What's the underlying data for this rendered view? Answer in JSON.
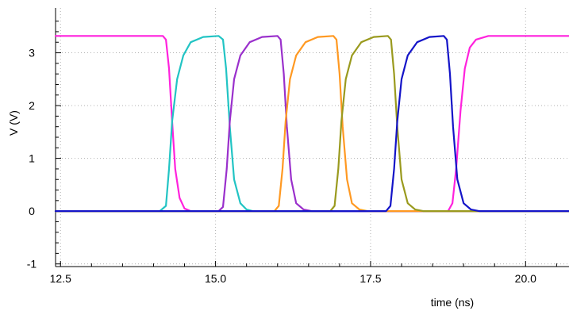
{
  "chart_data": {
    "type": "line",
    "title": "",
    "xlabel": "time (ns)",
    "ylabel": "V (V)",
    "xlim": [
      12.42,
      20.7
    ],
    "ylim": [
      -1.05,
      3.85
    ],
    "grid": true,
    "legend": "none",
    "x_ticks": [
      {
        "value": 12.5,
        "label": "12.5"
      },
      {
        "value": 15.0,
        "label": "15.0"
      },
      {
        "value": 17.5,
        "label": "17.5"
      },
      {
        "value": 20.0,
        "label": "20.0"
      }
    ],
    "y_ticks": [
      {
        "value": -1,
        "label": "-1"
      },
      {
        "value": 0,
        "label": "0"
      },
      {
        "value": 1,
        "label": "1"
      },
      {
        "value": 2,
        "label": "2"
      },
      {
        "value": 3,
        "label": "3"
      }
    ],
    "series": [
      {
        "color": "#ff22dd",
        "points": [
          [
            12.42,
            3.32
          ],
          [
            14.15,
            3.32
          ],
          [
            14.2,
            3.25
          ],
          [
            14.25,
            2.7
          ],
          [
            14.3,
            1.7
          ],
          [
            14.35,
            0.8
          ],
          [
            14.42,
            0.25
          ],
          [
            14.5,
            0.05
          ],
          [
            14.6,
            0.0
          ],
          [
            18.6,
            0.0
          ],
          [
            18.75,
            0.0
          ],
          [
            18.82,
            0.15
          ],
          [
            18.88,
            0.8
          ],
          [
            18.95,
            1.9
          ],
          [
            19.02,
            2.7
          ],
          [
            19.1,
            3.1
          ],
          [
            19.2,
            3.25
          ],
          [
            19.4,
            3.32
          ],
          [
            20.7,
            3.32
          ]
        ]
      },
      {
        "color": "#22c4c4",
        "points": [
          [
            12.42,
            0.0
          ],
          [
            14.1,
            0.0
          ],
          [
            14.2,
            0.1
          ],
          [
            14.25,
            0.8
          ],
          [
            14.3,
            1.7
          ],
          [
            14.38,
            2.5
          ],
          [
            14.48,
            2.95
          ],
          [
            14.6,
            3.2
          ],
          [
            14.8,
            3.3
          ],
          [
            15.05,
            3.32
          ],
          [
            15.12,
            3.25
          ],
          [
            15.17,
            2.7
          ],
          [
            15.23,
            1.6
          ],
          [
            15.3,
            0.6
          ],
          [
            15.4,
            0.15
          ],
          [
            15.5,
            0.03
          ],
          [
            15.6,
            0.0
          ],
          [
            20.7,
            0.0
          ]
        ]
      },
      {
        "color": "#9a30cc",
        "points": [
          [
            12.42,
            0.0
          ],
          [
            15.05,
            0.0
          ],
          [
            15.12,
            0.08
          ],
          [
            15.18,
            0.8
          ],
          [
            15.23,
            1.7
          ],
          [
            15.3,
            2.5
          ],
          [
            15.4,
            2.95
          ],
          [
            15.55,
            3.2
          ],
          [
            15.75,
            3.3
          ],
          [
            16.0,
            3.32
          ],
          [
            16.05,
            3.25
          ],
          [
            16.1,
            2.6
          ],
          [
            16.15,
            1.6
          ],
          [
            16.22,
            0.6
          ],
          [
            16.3,
            0.15
          ],
          [
            16.42,
            0.03
          ],
          [
            16.55,
            0.0
          ],
          [
            20.7,
            0.0
          ]
        ]
      },
      {
        "color": "#ff9922",
        "points": [
          [
            12.42,
            0.0
          ],
          [
            15.95,
            0.0
          ],
          [
            16.02,
            0.1
          ],
          [
            16.08,
            0.8
          ],
          [
            16.13,
            1.7
          ],
          [
            16.2,
            2.5
          ],
          [
            16.3,
            2.95
          ],
          [
            16.45,
            3.2
          ],
          [
            16.65,
            3.3
          ],
          [
            16.9,
            3.32
          ],
          [
            16.95,
            3.25
          ],
          [
            17.0,
            2.6
          ],
          [
            17.05,
            1.6
          ],
          [
            17.12,
            0.6
          ],
          [
            17.2,
            0.15
          ],
          [
            17.32,
            0.03
          ],
          [
            17.45,
            0.0
          ],
          [
            20.7,
            0.0
          ]
        ]
      },
      {
        "color": "#9a9a1e",
        "points": [
          [
            12.42,
            0.0
          ],
          [
            16.85,
            0.0
          ],
          [
            16.92,
            0.1
          ],
          [
            16.98,
            0.8
          ],
          [
            17.03,
            1.7
          ],
          [
            17.1,
            2.5
          ],
          [
            17.2,
            2.95
          ],
          [
            17.35,
            3.2
          ],
          [
            17.55,
            3.3
          ],
          [
            17.78,
            3.32
          ],
          [
            17.83,
            3.25
          ],
          [
            17.88,
            2.6
          ],
          [
            17.93,
            1.6
          ],
          [
            18.0,
            0.6
          ],
          [
            18.1,
            0.15
          ],
          [
            18.22,
            0.03
          ],
          [
            18.35,
            0.0
          ],
          [
            20.7,
            0.0
          ]
        ]
      },
      {
        "color": "#1414c8",
        "points": [
          [
            12.42,
            0.0
          ],
          [
            17.75,
            0.0
          ],
          [
            17.82,
            0.1
          ],
          [
            17.88,
            0.8
          ],
          [
            17.93,
            1.7
          ],
          [
            18.0,
            2.5
          ],
          [
            18.1,
            2.95
          ],
          [
            18.25,
            3.2
          ],
          [
            18.45,
            3.3
          ],
          [
            18.68,
            3.32
          ],
          [
            18.73,
            3.25
          ],
          [
            18.78,
            2.6
          ],
          [
            18.83,
            1.6
          ],
          [
            18.9,
            0.6
          ],
          [
            19.0,
            0.15
          ],
          [
            19.12,
            0.03
          ],
          [
            19.25,
            0.0
          ],
          [
            20.7,
            0.0
          ]
        ]
      }
    ]
  }
}
